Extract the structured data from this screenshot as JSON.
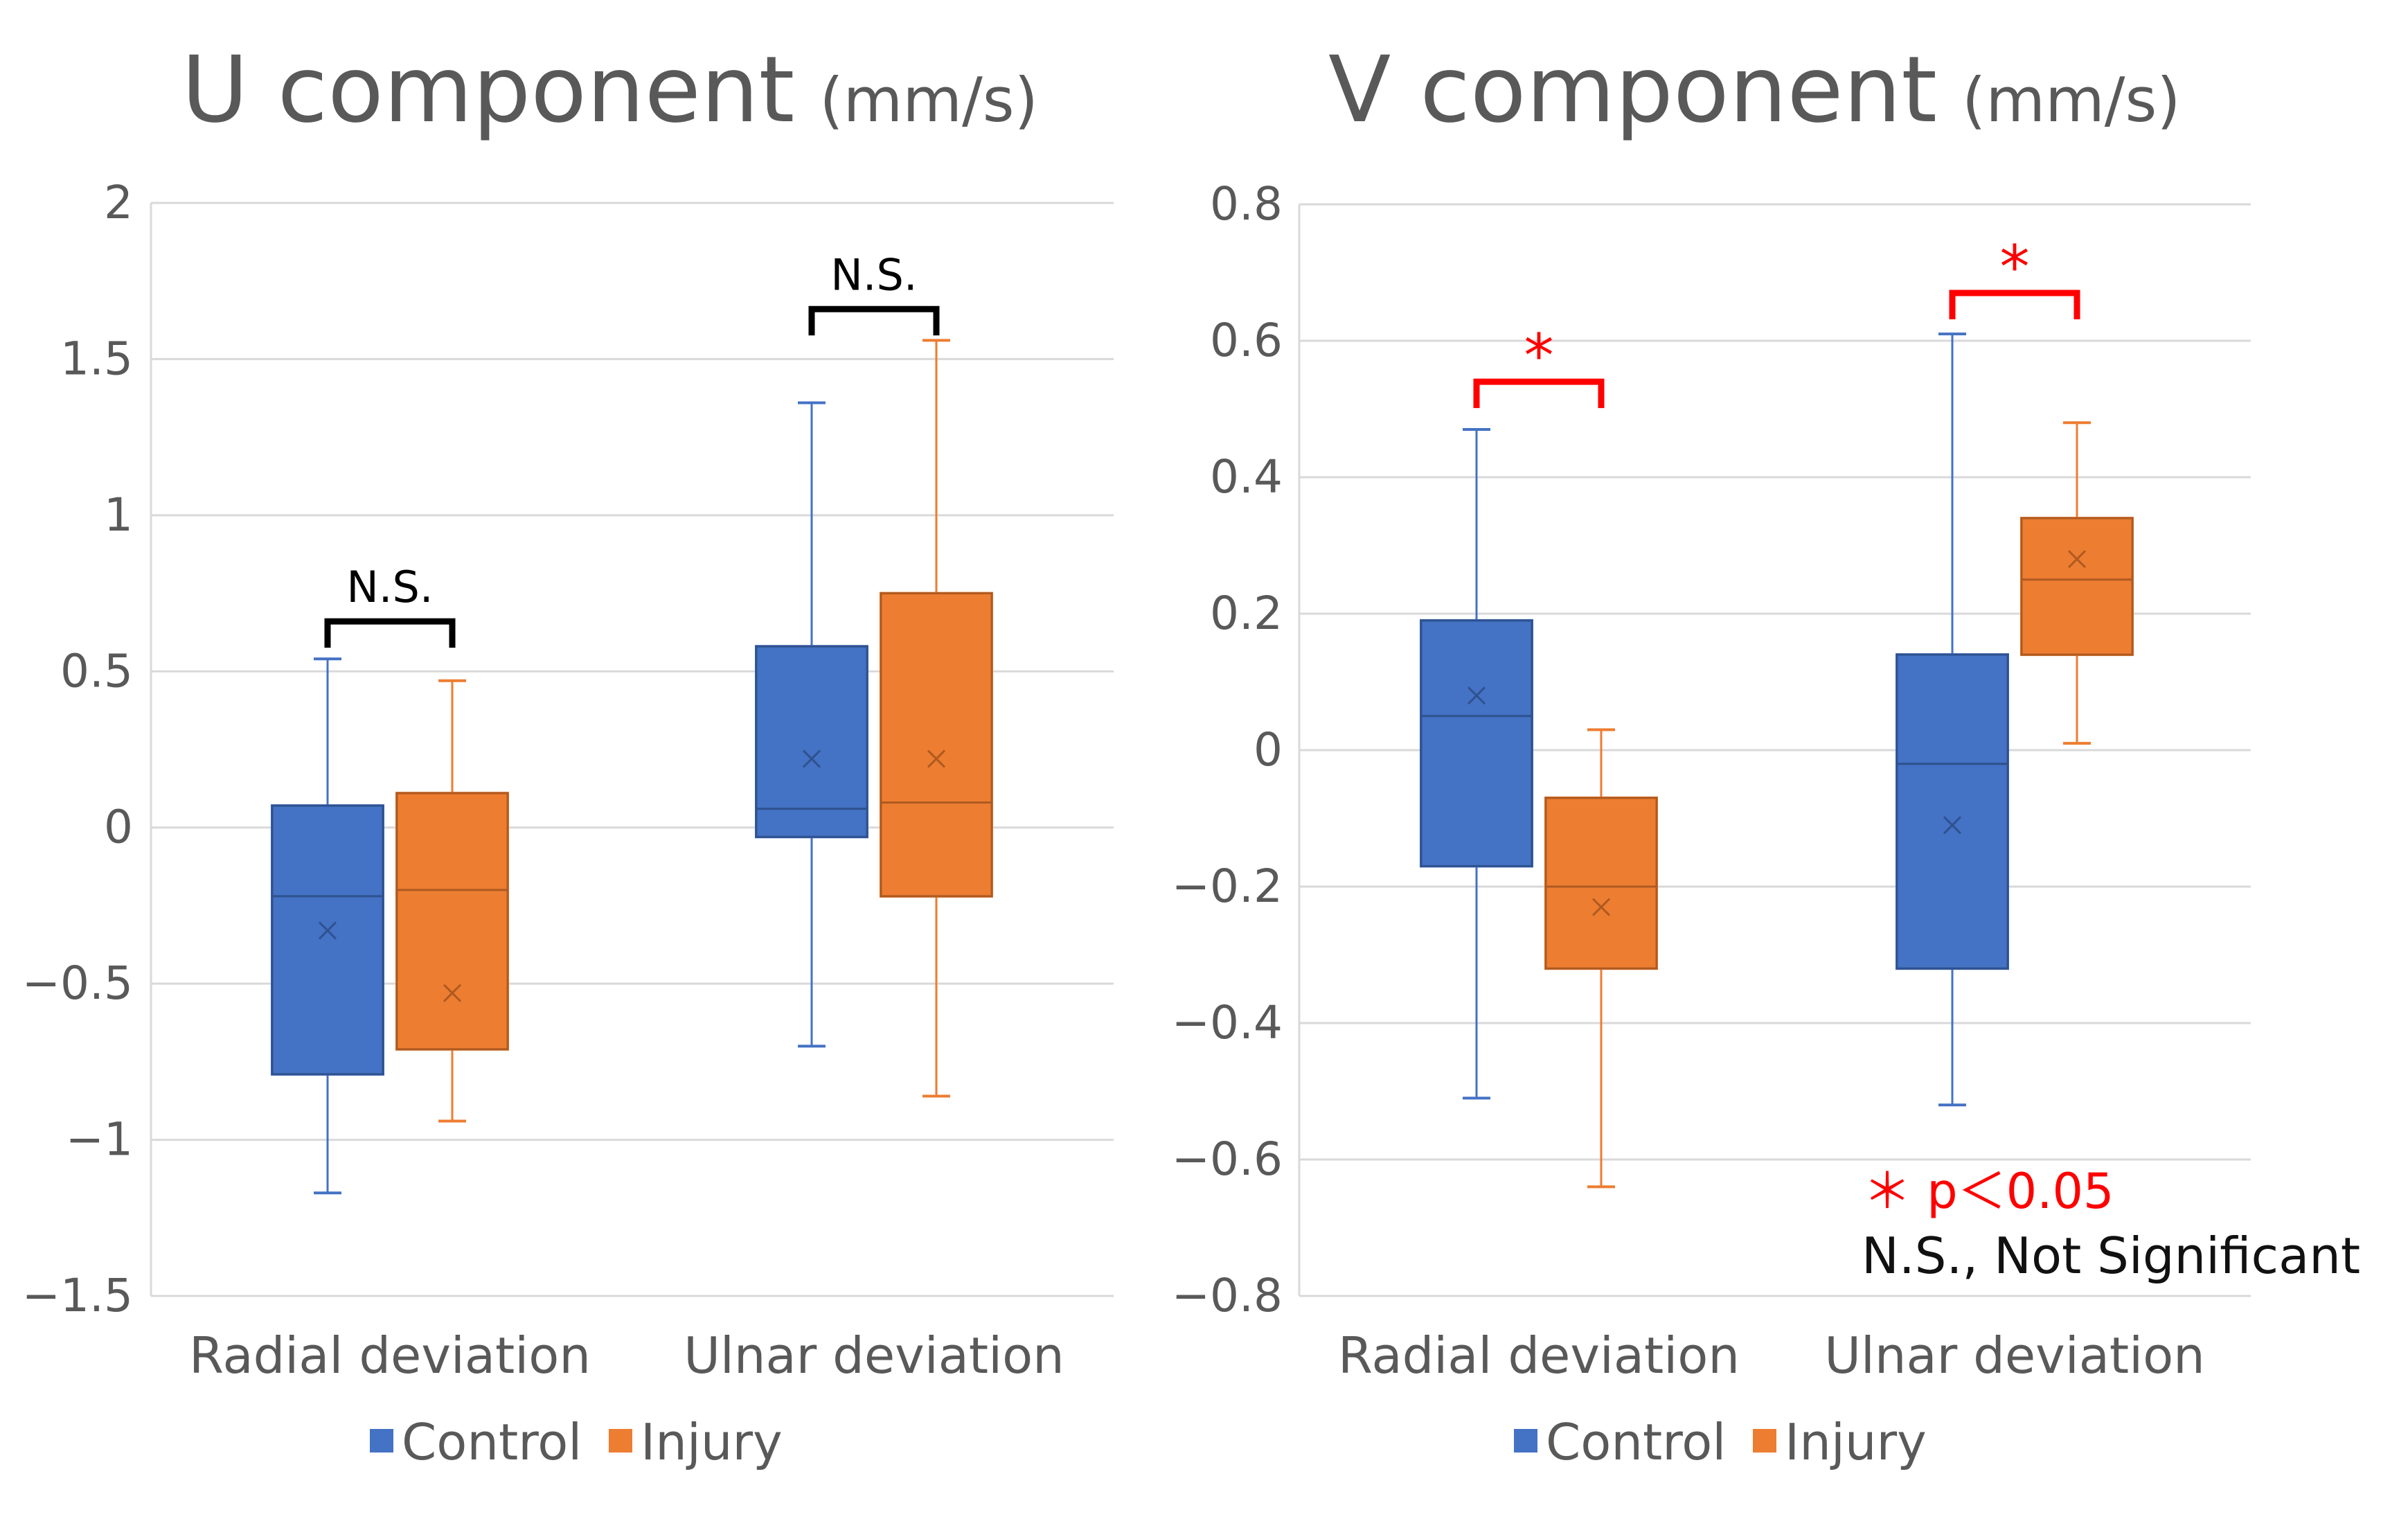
{
  "chart_data": [
    {
      "type": "box",
      "title": "U component",
      "unit": "(mm/s)",
      "categories": [
        "Radial deviation",
        "Ulnar deviation"
      ],
      "ylim": [
        -1.5,
        2
      ],
      "yticks": [
        2,
        1.5,
        1,
        0.5,
        0,
        -0.5,
        -1,
        -1.5
      ],
      "ytick_labels": [
        "2",
        "1.5",
        "1",
        "0.5",
        "0",
        "−0.5",
        "−1",
        "−1.5"
      ],
      "grid": true,
      "legend_position": "bottom",
      "series": [
        {
          "name": "Control",
          "color": "#4472C4",
          "boxes": [
            {
              "min": -1.17,
              "q1": -0.79,
              "median": -0.22,
              "q3": 0.07,
              "max": 0.54,
              "mean": -0.33
            },
            {
              "min": -0.7,
              "q1": -0.03,
              "median": 0.06,
              "q3": 0.58,
              "max": 1.36,
              "mean": 0.22
            }
          ]
        },
        {
          "name": "Injury",
          "color": "#ED7D31",
          "boxes": [
            {
              "min": -0.94,
              "q1": -0.71,
              "median": -0.2,
              "q3": 0.11,
              "max": 0.47,
              "mean": -0.53
            },
            {
              "min": -0.86,
              "q1": -0.22,
              "median": 0.08,
              "q3": 0.75,
              "max": 1.56,
              "mean": 0.22
            }
          ]
        }
      ],
      "annotations": [
        {
          "category": "Radial deviation",
          "text": "N.S.",
          "y": 0.66,
          "color": "#000000"
        },
        {
          "category": "Ulnar deviation",
          "text": "N.S.",
          "y": 1.66,
          "color": "#000000"
        }
      ]
    },
    {
      "type": "box",
      "title": "V component",
      "unit": "(mm/s)",
      "categories": [
        "Radial deviation",
        "Ulnar deviation"
      ],
      "ylim": [
        -0.8,
        0.8
      ],
      "yticks": [
        0.8,
        0.6,
        0.4,
        0.2,
        0,
        -0.2,
        -0.4,
        -0.6,
        -0.8
      ],
      "ytick_labels": [
        "0.8",
        "0.6",
        "0.4",
        "0.2",
        "0",
        "−0.2",
        "−0.4",
        "−0.6",
        "−0.8"
      ],
      "grid": true,
      "legend_position": "bottom",
      "series": [
        {
          "name": "Control",
          "color": "#4472C4",
          "boxes": [
            {
              "min": -0.51,
              "q1": -0.17,
              "median": 0.05,
              "q3": 0.19,
              "max": 0.47,
              "mean": 0.08
            },
            {
              "min": -0.52,
              "q1": -0.32,
              "median": -0.02,
              "q3": 0.14,
              "max": 0.61,
              "mean": -0.11
            }
          ]
        },
        {
          "name": "Injury",
          "color": "#ED7D31",
          "boxes": [
            {
              "min": -0.64,
              "q1": -0.32,
              "median": -0.2,
              "q3": -0.07,
              "max": 0.03,
              "mean": -0.23
            },
            {
              "min": 0.01,
              "q1": 0.14,
              "median": 0.25,
              "q3": 0.34,
              "max": 0.48,
              "mean": 0.28
            }
          ]
        }
      ],
      "annotations": [
        {
          "category": "Radial deviation",
          "text": "*",
          "y": 0.54,
          "color": "#FF0000"
        },
        {
          "category": "Ulnar deviation",
          "text": "*",
          "y": 0.67,
          "color": "#FF0000"
        }
      ]
    }
  ],
  "footnotes": {
    "significance": "＊ p＜0.05",
    "significance_color": "#FF0000",
    "not_significant": "N.S., Not Significant"
  },
  "colors": {
    "axis_text": "#595959",
    "grid": "#D9D9D9"
  }
}
